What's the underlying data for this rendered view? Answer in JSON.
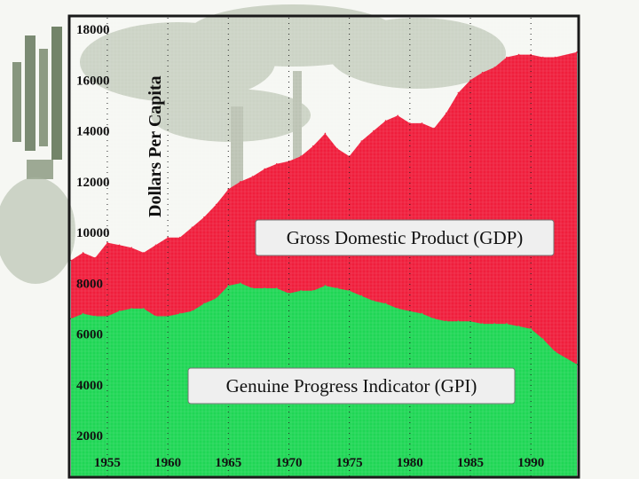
{
  "chart_data": {
    "type": "area",
    "title": "",
    "xlabel": "",
    "ylabel": "Dollars Per Capita",
    "xlim": [
      1952,
      1993.8
    ],
    "ylim": [
      1000,
      18000
    ],
    "x_ticks": [
      "1955",
      "1960",
      "1965",
      "1970",
      "1975",
      "1980",
      "1985",
      "1990"
    ],
    "y_ticks": [
      "18000",
      "16000",
      "14000",
      "12000",
      "10000",
      "8000",
      "6000",
      "4000",
      "2000"
    ],
    "series": [
      {
        "name": "Gross Domestic Product (GDP)",
        "color": "#f01e3c",
        "x": [
          1952,
          1953,
          1954,
          1955,
          1956,
          1957,
          1958,
          1959,
          1960,
          1961,
          1962,
          1963,
          1964,
          1965,
          1966,
          1967,
          1968,
          1969,
          1970,
          1971,
          1972,
          1973,
          1974,
          1975,
          1976,
          1977,
          1978,
          1979,
          1980,
          1981,
          1982,
          1983,
          1984,
          1985,
          1986,
          1987,
          1988,
          1989,
          1990,
          1991,
          1992,
          1993.8
        ],
        "values": [
          8900,
          9200,
          9000,
          9600,
          9500,
          9400,
          9200,
          9500,
          9800,
          9800,
          10200,
          10600,
          11100,
          11700,
          12000,
          12200,
          12500,
          12700,
          12800,
          13000,
          13400,
          13900,
          13300,
          13000,
          13600,
          14000,
          14400,
          14600,
          14300,
          14300,
          14100,
          14700,
          15500,
          16000,
          16300,
          16500,
          16900,
          17000,
          17000,
          16900,
          16900,
          17100
        ]
      },
      {
        "name": "Genuine Progress Indicator (GPI)",
        "color": "#1fd655",
        "x": [
          1952,
          1953,
          1954,
          1955,
          1956,
          1957,
          1958,
          1959,
          1960,
          1961,
          1962,
          1963,
          1964,
          1965,
          1966,
          1967,
          1968,
          1969,
          1970,
          1971,
          1972,
          1973,
          1974,
          1975,
          1976,
          1977,
          1978,
          1979,
          1980,
          1981,
          1982,
          1983,
          1984,
          1985,
          1986,
          1987,
          1988,
          1989,
          1990,
          1991,
          1992,
          1993.8
        ],
        "values": [
          6600,
          6800,
          6700,
          6700,
          6900,
          7000,
          7000,
          6700,
          6700,
          6800,
          6900,
          7200,
          7400,
          7900,
          8000,
          7800,
          7800,
          7800,
          7600,
          7700,
          7700,
          7900,
          7800,
          7700,
          7500,
          7300,
          7200,
          7000,
          6900,
          6800,
          6600,
          6500,
          6500,
          6500,
          6400,
          6400,
          6400,
          6300,
          6200,
          5800,
          5300,
          4800
        ]
      }
    ],
    "legend_position": "in-plot labels"
  },
  "labels": {
    "gdp": "Gross Domestic Product (GDP)",
    "gpi": "Genuine Progress Indicator (GPI)"
  },
  "colors": {
    "gdp": "#f01e3c",
    "gpi": "#1fd655",
    "frame": "#1a1a1a",
    "backdrop_tree": "#9aa890",
    "backdrop_band": "#6f7f63"
  }
}
